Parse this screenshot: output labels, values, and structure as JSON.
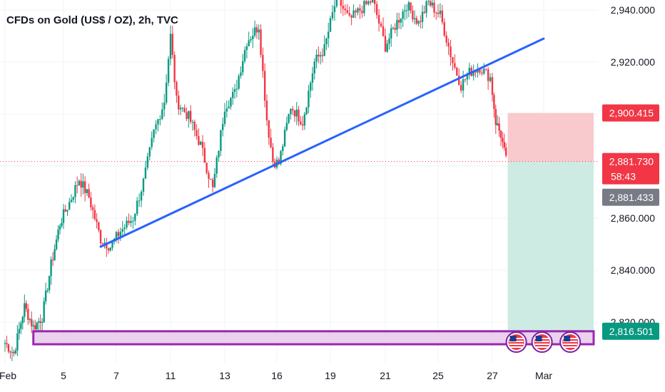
{
  "title": "CFDs on Gold (US$ / OZ), 2h, TVC",
  "colors": {
    "up": "#089981",
    "down": "#f23645",
    "trendline": "#2962ff",
    "zone_stroke": "#9c27b0",
    "zone_fill": "#e1bee7",
    "risk_fill": "#f8c9cd",
    "reward_fill": "#cdebe3",
    "grid": "#f0f3fa",
    "gray_badge": "#787b86",
    "green_badge": "#089981"
  },
  "chart_data": {
    "type": "candlestick",
    "title": "CFDs on Gold (US$ / OZ), 2h, TVC",
    "ylim": [
      2807,
      2944
    ],
    "y_ticks": [
      "2,940.000",
      "2,920.000",
      "2,900.000",
      "2,880.000",
      "2,860.000",
      "2,840.000",
      "2,820.000"
    ],
    "y_tick_values": [
      2940,
      2920,
      2900,
      2880,
      2860,
      2840,
      2820
    ],
    "x_ticks": [
      "Feb",
      "5",
      "7",
      "11",
      "13",
      "16",
      "19",
      "21",
      "25",
      "27",
      "Mar"
    ],
    "x_tick_index": [
      0,
      33,
      60,
      86,
      113,
      139,
      166,
      192,
      219,
      245,
      275
    ],
    "x_max_index": 300,
    "anchors": [
      [
        0,
        2812
      ],
      [
        5,
        2808
      ],
      [
        11,
        2826
      ],
      [
        16,
        2818
      ],
      [
        21,
        2822
      ],
      [
        26,
        2842
      ],
      [
        31,
        2858
      ],
      [
        36,
        2866
      ],
      [
        41,
        2875
      ],
      [
        46,
        2868
      ],
      [
        52,
        2852
      ],
      [
        57,
        2849
      ],
      [
        62,
        2855
      ],
      [
        68,
        2860
      ],
      [
        73,
        2874
      ],
      [
        78,
        2893
      ],
      [
        83,
        2905
      ],
      [
        86,
        2930
      ],
      [
        89,
        2905
      ],
      [
        95,
        2899
      ],
      [
        101,
        2888
      ],
      [
        107,
        2871
      ],
      [
        113,
        2903
      ],
      [
        118,
        2908
      ],
      [
        124,
        2928
      ],
      [
        130,
        2934
      ],
      [
        134,
        2898
      ],
      [
        137,
        2882
      ],
      [
        140,
        2881
      ],
      [
        146,
        2903
      ],
      [
        152,
        2897
      ],
      [
        158,
        2920
      ],
      [
        163,
        2925
      ],
      [
        169,
        2945
      ],
      [
        175,
        2936
      ],
      [
        180,
        2940
      ],
      [
        186,
        2944
      ],
      [
        192,
        2926
      ],
      [
        197,
        2934
      ],
      [
        203,
        2942
      ],
      [
        209,
        2935
      ],
      [
        214,
        2943
      ],
      [
        220,
        2938
      ],
      [
        226,
        2920
      ],
      [
        230,
        2911
      ],
      [
        234,
        2916
      ],
      [
        239,
        2918
      ],
      [
        244,
        2914
      ],
      [
        247,
        2897
      ],
      [
        250,
        2892
      ],
      [
        253,
        2882
      ]
    ],
    "last_price": "2,881.730",
    "countdown": "58:43",
    "bid_price": "2,881.433",
    "stop_price": "2,900.415",
    "target_price": "2,816.501",
    "last_price_value": 2881.73,
    "stop_value": 2900.415,
    "target_value": 2816.501,
    "trendline": {
      "start": [
        52,
        2849
      ],
      "end": [
        275,
        2929
      ]
    },
    "short_position": {
      "start_index": 254,
      "end_index": 300,
      "entry": 2881.73,
      "stop": 2900.415,
      "target": 2816.501
    },
    "support_zone": {
      "start_index": 16,
      "end_index": 300,
      "low": 2811.5,
      "high": 2816.5
    },
    "event_markers_index": [
      254,
      269,
      284
    ]
  }
}
